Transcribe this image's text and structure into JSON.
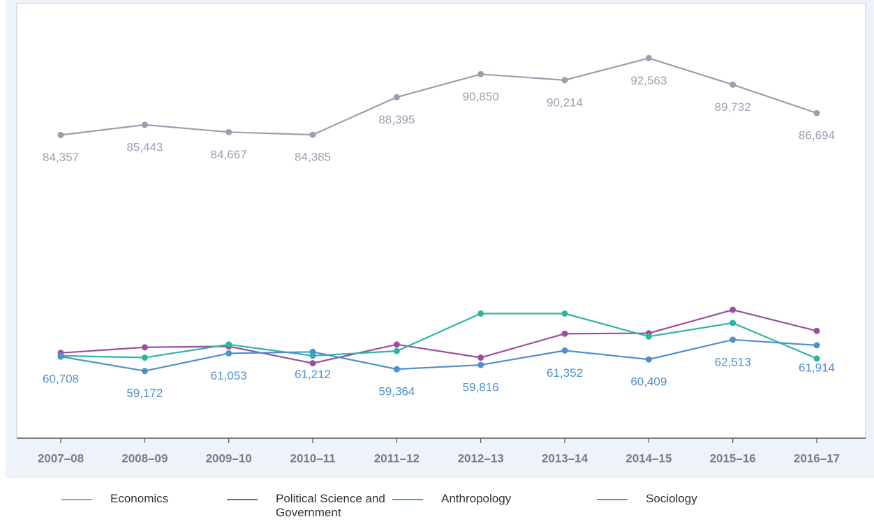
{
  "chart_data": {
    "type": "line",
    "categories": [
      "2007–08",
      "2008–09",
      "2009–10",
      "2010–11",
      "2011–12",
      "2012–13",
      "2013–14",
      "2014–15",
      "2015–16",
      "2016–17"
    ],
    "series": [
      {
        "name": "Economics",
        "color": "#9a9fb0",
        "values": [
          84357,
          85443,
          84667,
          84385,
          88395,
          90850,
          90214,
          92563,
          89732,
          86694
        ],
        "value_labels": [
          "84,357",
          "85,443",
          "84,667",
          "84,385",
          "88,395",
          "90,850",
          "90,214",
          "92,563",
          "89,732",
          "86,694"
        ]
      },
      {
        "name": "Political Science and Government",
        "color": "#9b4f9e",
        "values": [
          61100,
          61700,
          61800,
          60000,
          62000,
          60600,
          63150,
          63200,
          65700,
          63450
        ]
      },
      {
        "name": "Anthropology",
        "color": "#2db5a3",
        "values": [
          60800,
          60600,
          62000,
          60800,
          61300,
          65300,
          65300,
          62850,
          64300,
          60500
        ]
      },
      {
        "name": "Sociology",
        "color": "#4f8fcc",
        "values": [
          60708,
          59172,
          61053,
          61212,
          59364,
          59816,
          61352,
          60409,
          62513,
          61914
        ],
        "value_labels": [
          "60,708",
          "59,172",
          "61,053",
          "61,212",
          "59,364",
          "59,816",
          "61,352",
          "60,409",
          "62,513",
          "61,914"
        ]
      }
    ],
    "ylim": [
      52000,
      97500
    ]
  }
}
